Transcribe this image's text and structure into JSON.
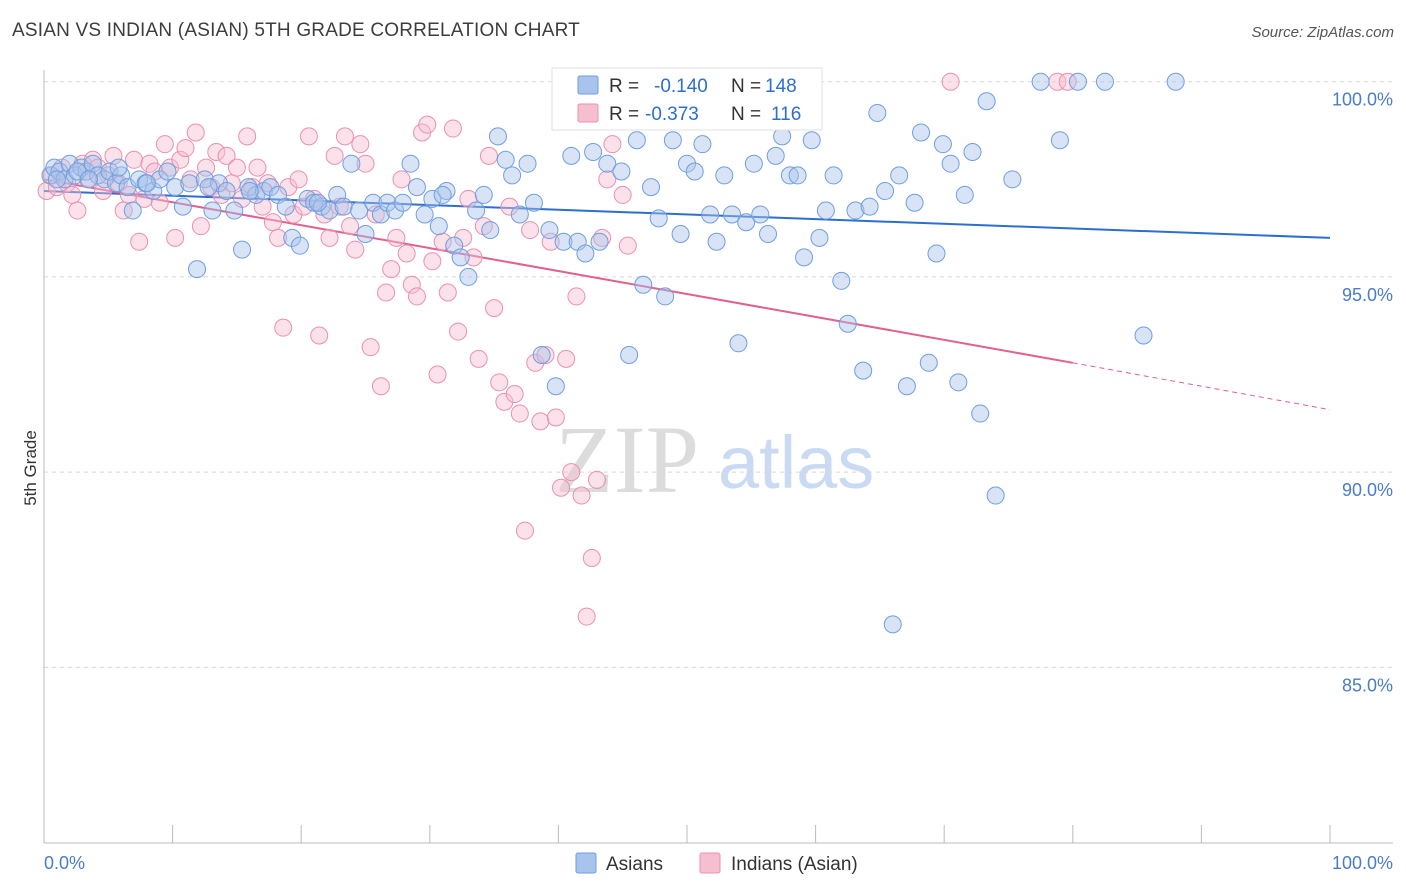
{
  "title": "ASIAN VS INDIAN (ASIAN) 5TH GRADE CORRELATION CHART",
  "source": "Source: ZipAtlas.com",
  "watermark": {
    "zip": "ZIP",
    "atlas": "atlas"
  },
  "colors": {
    "asians_fill": "#a9c4ec",
    "asians_stroke": "#6f9ee0",
    "asians_line": "#2d6fce",
    "indians_fill": "#f6bfd0",
    "indians_stroke": "#ec8fae",
    "indians_line": "#e2608f",
    "tick_text": "#4a7cc7",
    "grid": "#d8d8d8"
  },
  "legend": {
    "r_label": "R =",
    "n_label": "N =",
    "asians": {
      "r": "-0.140",
      "n": "148"
    },
    "indians": {
      "r": "-0.373",
      "n": "116"
    }
  },
  "chart_data": {
    "type": "scatter",
    "title": "ASIAN VS INDIAN (ASIAN) 5TH GRADE CORRELATION CHART",
    "xlabel": "",
    "ylabel": "5th Grade",
    "xlim": [
      0,
      100
    ],
    "ylim": [
      80.5,
      100.3
    ],
    "x_tick_labels": [
      "0.0%",
      "100.0%"
    ],
    "y_ticks": [
      85,
      90,
      95,
      100
    ],
    "y_tick_labels": [
      "85.0%",
      "90.0%",
      "95.0%",
      "100.0%"
    ],
    "grid": true,
    "legend_position": "top-center",
    "series": [
      {
        "name": "Asians",
        "r": -0.14,
        "n": 148,
        "trend": {
          "x0": 0,
          "y0": 97.2,
          "x1": 100,
          "y1": 96.0
        },
        "points": [
          [
            0.5,
            97.6
          ],
          [
            0.8,
            97.8
          ],
          [
            1.2,
            97.7
          ],
          [
            1.6,
            97.5
          ],
          [
            2.0,
            97.9
          ],
          [
            2.4,
            97.6
          ],
          [
            2.9,
            97.8
          ],
          [
            3.3,
            97.7
          ],
          [
            3.8,
            97.9
          ],
          [
            4.2,
            97.6
          ],
          [
            4.7,
            97.5
          ],
          [
            5.1,
            97.7
          ],
          [
            5.6,
            97.4
          ],
          [
            6.0,
            97.6
          ],
          [
            6.5,
            97.3
          ],
          [
            6.9,
            96.7
          ],
          [
            7.4,
            97.5
          ],
          [
            7.9,
            97.4
          ],
          [
            8.5,
            97.2
          ],
          [
            9.0,
            97.5
          ],
          [
            9.6,
            97.7
          ],
          [
            10.2,
            97.3
          ],
          [
            10.8,
            96.8
          ],
          [
            11.3,
            97.4
          ],
          [
            11.9,
            95.2
          ],
          [
            12.5,
            97.5
          ],
          [
            13.1,
            96.7
          ],
          [
            13.6,
            97.4
          ],
          [
            14.2,
            97.2
          ],
          [
            14.8,
            96.7
          ],
          [
            15.4,
            95.7
          ],
          [
            15.9,
            97.3
          ],
          [
            16.5,
            97.1
          ],
          [
            17.1,
            97.2
          ],
          [
            17.6,
            97.3
          ],
          [
            18.2,
            97.1
          ],
          [
            18.8,
            96.8
          ],
          [
            19.3,
            96.0
          ],
          [
            19.9,
            95.8
          ],
          [
            20.5,
            97.0
          ],
          [
            21.0,
            96.9
          ],
          [
            21.6,
            96.8
          ],
          [
            22.2,
            96.7
          ],
          [
            22.8,
            97.1
          ],
          [
            23.3,
            96.8
          ],
          [
            23.9,
            97.9
          ],
          [
            24.5,
            96.7
          ],
          [
            25.0,
            96.1
          ],
          [
            25.6,
            96.9
          ],
          [
            26.2,
            96.6
          ],
          [
            26.7,
            96.9
          ],
          [
            27.3,
            96.7
          ],
          [
            27.9,
            96.9
          ],
          [
            28.5,
            97.9
          ],
          [
            29.0,
            97.3
          ],
          [
            29.6,
            96.6
          ],
          [
            30.2,
            97.0
          ],
          [
            30.7,
            96.3
          ],
          [
            31.3,
            97.2
          ],
          [
            31.9,
            95.8
          ],
          [
            32.4,
            95.5
          ],
          [
            33.0,
            95.0
          ],
          [
            33.6,
            96.7
          ],
          [
            34.2,
            97.1
          ],
          [
            34.7,
            96.2
          ],
          [
            35.3,
            98.6
          ],
          [
            35.9,
            98.0
          ],
          [
            36.4,
            97.6
          ],
          [
            37.0,
            96.6
          ],
          [
            37.6,
            97.9
          ],
          [
            38.1,
            96.9
          ],
          [
            38.7,
            93.0
          ],
          [
            39.3,
            96.2
          ],
          [
            39.8,
            92.2
          ],
          [
            40.4,
            95.9
          ],
          [
            41.0,
            98.1
          ],
          [
            41.5,
            95.9
          ],
          [
            42.1,
            95.6
          ],
          [
            42.7,
            98.2
          ],
          [
            43.2,
            95.9
          ],
          [
            43.8,
            97.9
          ],
          [
            44.4,
            99.0
          ],
          [
            44.9,
            97.7
          ],
          [
            45.5,
            93.0
          ],
          [
            46.1,
            98.5
          ],
          [
            46.6,
            94.8
          ],
          [
            47.2,
            97.3
          ],
          [
            47.8,
            96.5
          ],
          [
            48.3,
            94.5
          ],
          [
            48.9,
            98.5
          ],
          [
            49.5,
            96.1
          ],
          [
            50.0,
            97.9
          ],
          [
            50.6,
            97.7
          ],
          [
            51.2,
            98.4
          ],
          [
            51.8,
            96.6
          ],
          [
            52.3,
            95.9
          ],
          [
            52.9,
            97.6
          ],
          [
            53.5,
            96.6
          ],
          [
            54.0,
            93.3
          ],
          [
            54.6,
            96.4
          ],
          [
            55.2,
            97.9
          ],
          [
            55.7,
            96.6
          ],
          [
            56.3,
            96.1
          ],
          [
            56.9,
            98.1
          ],
          [
            57.4,
            98.6
          ],
          [
            58.0,
            97.6
          ],
          [
            58.6,
            97.6
          ],
          [
            59.1,
            95.5
          ],
          [
            59.7,
            98.5
          ],
          [
            60.3,
            96.0
          ],
          [
            60.8,
            96.7
          ],
          [
            61.4,
            97.6
          ],
          [
            62.0,
            94.9
          ],
          [
            62.5,
            93.8
          ],
          [
            63.1,
            96.7
          ],
          [
            63.7,
            92.6
          ],
          [
            64.2,
            96.8
          ],
          [
            64.8,
            99.2
          ],
          [
            65.4,
            97.2
          ],
          [
            66.0,
            86.1
          ],
          [
            66.5,
            97.6
          ],
          [
            67.1,
            92.2
          ],
          [
            67.7,
            96.9
          ],
          [
            68.2,
            98.7
          ],
          [
            68.8,
            92.8
          ],
          [
            69.4,
            95.6
          ],
          [
            69.9,
            98.4
          ],
          [
            70.5,
            97.9
          ],
          [
            71.1,
            92.3
          ],
          [
            71.6,
            97.1
          ],
          [
            72.2,
            98.2
          ],
          [
            72.8,
            91.5
          ],
          [
            73.3,
            99.5
          ],
          [
            74.0,
            89.4
          ],
          [
            75.3,
            97.5
          ],
          [
            77.5,
            100.0
          ],
          [
            79.0,
            98.5
          ],
          [
            80.4,
            100.0
          ],
          [
            82.5,
            100.0
          ],
          [
            85.5,
            93.5
          ],
          [
            88.0,
            100.0
          ],
          [
            31.0,
            97.1
          ],
          [
            1.0,
            97.5
          ],
          [
            2.6,
            97.7
          ],
          [
            3.5,
            97.5
          ],
          [
            5.8,
            97.8
          ],
          [
            8.0,
            97.4
          ],
          [
            12.8,
            97.3
          ],
          [
            16.0,
            97.2
          ],
          [
            21.3,
            96.9
          ]
        ]
      },
      {
        "name": "Indians (Asian)",
        "r": -0.373,
        "n": 116,
        "trend": {
          "x0": 0,
          "y0": 97.5,
          "x1": 80,
          "y1": 92.8,
          "x1_dashed": 100,
          "y1_dashed": 91.6
        },
        "points": [
          [
            0.2,
            97.2
          ],
          [
            0.6,
            97.6
          ],
          [
            1.0,
            97.3
          ],
          [
            1.4,
            97.8
          ],
          [
            1.8,
            97.4
          ],
          [
            2.2,
            97.1
          ],
          [
            2.6,
            96.7
          ],
          [
            3.0,
            97.9
          ],
          [
            3.4,
            97.5
          ],
          [
            3.8,
            98.0
          ],
          [
            4.2,
            97.8
          ],
          [
            4.6,
            97.2
          ],
          [
            5.0,
            97.6
          ],
          [
            5.4,
            98.1
          ],
          [
            5.8,
            97.4
          ],
          [
            6.2,
            96.7
          ],
          [
            6.6,
            97.1
          ],
          [
            7.0,
            98.0
          ],
          [
            7.4,
            95.9
          ],
          [
            7.8,
            97.0
          ],
          [
            8.2,
            97.9
          ],
          [
            8.6,
            97.7
          ],
          [
            9.0,
            96.9
          ],
          [
            9.4,
            98.4
          ],
          [
            9.8,
            97.8
          ],
          [
            10.2,
            96.0
          ],
          [
            10.6,
            98.0
          ],
          [
            11.0,
            98.3
          ],
          [
            11.4,
            97.5
          ],
          [
            11.8,
            98.7
          ],
          [
            12.2,
            96.3
          ],
          [
            12.6,
            97.8
          ],
          [
            13.0,
            97.3
          ],
          [
            13.4,
            98.2
          ],
          [
            13.8,
            97.1
          ],
          [
            14.2,
            98.1
          ],
          [
            14.6,
            97.4
          ],
          [
            15.0,
            97.8
          ],
          [
            15.4,
            97.0
          ],
          [
            15.8,
            98.6
          ],
          [
            16.2,
            97.3
          ],
          [
            16.6,
            97.8
          ],
          [
            17.0,
            96.8
          ],
          [
            17.4,
            97.4
          ],
          [
            17.8,
            96.4
          ],
          [
            18.2,
            96.0
          ],
          [
            18.6,
            93.7
          ],
          [
            19.0,
            97.3
          ],
          [
            19.4,
            96.6
          ],
          [
            19.8,
            97.5
          ],
          [
            20.2,
            96.8
          ],
          [
            20.6,
            98.6
          ],
          [
            21.0,
            97.0
          ],
          [
            21.4,
            93.5
          ],
          [
            21.8,
            96.6
          ],
          [
            22.2,
            96.0
          ],
          [
            22.6,
            98.1
          ],
          [
            23.0,
            96.8
          ],
          [
            23.4,
            98.6
          ],
          [
            23.8,
            96.3
          ],
          [
            24.2,
            95.7
          ],
          [
            24.6,
            98.4
          ],
          [
            25.0,
            97.9
          ],
          [
            25.4,
            93.2
          ],
          [
            25.8,
            96.6
          ],
          [
            26.2,
            92.2
          ],
          [
            26.6,
            94.6
          ],
          [
            27.0,
            95.2
          ],
          [
            27.4,
            96.0
          ],
          [
            27.8,
            97.5
          ],
          [
            28.2,
            95.6
          ],
          [
            28.6,
            94.8
          ],
          [
            29.0,
            94.5
          ],
          [
            29.4,
            98.7
          ],
          [
            29.8,
            98.9
          ],
          [
            30.2,
            95.4
          ],
          [
            30.6,
            92.5
          ],
          [
            31.0,
            95.9
          ],
          [
            31.4,
            94.6
          ],
          [
            31.8,
            98.8
          ],
          [
            32.2,
            93.6
          ],
          [
            32.6,
            96.0
          ],
          [
            33.0,
            97.0
          ],
          [
            33.4,
            95.5
          ],
          [
            33.8,
            92.9
          ],
          [
            34.2,
            96.3
          ],
          [
            34.6,
            98.1
          ],
          [
            35.0,
            94.2
          ],
          [
            35.4,
            92.3
          ],
          [
            35.8,
            91.8
          ],
          [
            36.2,
            96.8
          ],
          [
            36.6,
            92.0
          ],
          [
            37.0,
            91.5
          ],
          [
            37.4,
            88.5
          ],
          [
            37.8,
            96.2
          ],
          [
            38.2,
            92.8
          ],
          [
            38.6,
            91.3
          ],
          [
            39.0,
            93.0
          ],
          [
            39.4,
            95.9
          ],
          [
            39.8,
            91.4
          ],
          [
            40.2,
            89.6
          ],
          [
            40.6,
            92.9
          ],
          [
            41.0,
            90.0
          ],
          [
            41.4,
            94.5
          ],
          [
            41.8,
            89.4
          ],
          [
            42.2,
            86.3
          ],
          [
            42.6,
            87.8
          ],
          [
            43.0,
            89.8
          ],
          [
            43.4,
            96.0
          ],
          [
            43.8,
            97.5
          ],
          [
            44.2,
            98.4
          ],
          [
            44.6,
            99.9
          ],
          [
            45.0,
            97.1
          ],
          [
            45.4,
            95.8
          ],
          [
            46.0,
            100.0
          ],
          [
            47.0,
            100.0
          ],
          [
            48.5,
            100.0
          ],
          [
            70.5,
            100.0
          ],
          [
            78.8,
            100.0
          ],
          [
            79.6,
            100.0
          ]
        ]
      }
    ]
  },
  "bottom_legend": [
    {
      "name": "Asians"
    },
    {
      "name": "Indians (Asian)"
    }
  ]
}
